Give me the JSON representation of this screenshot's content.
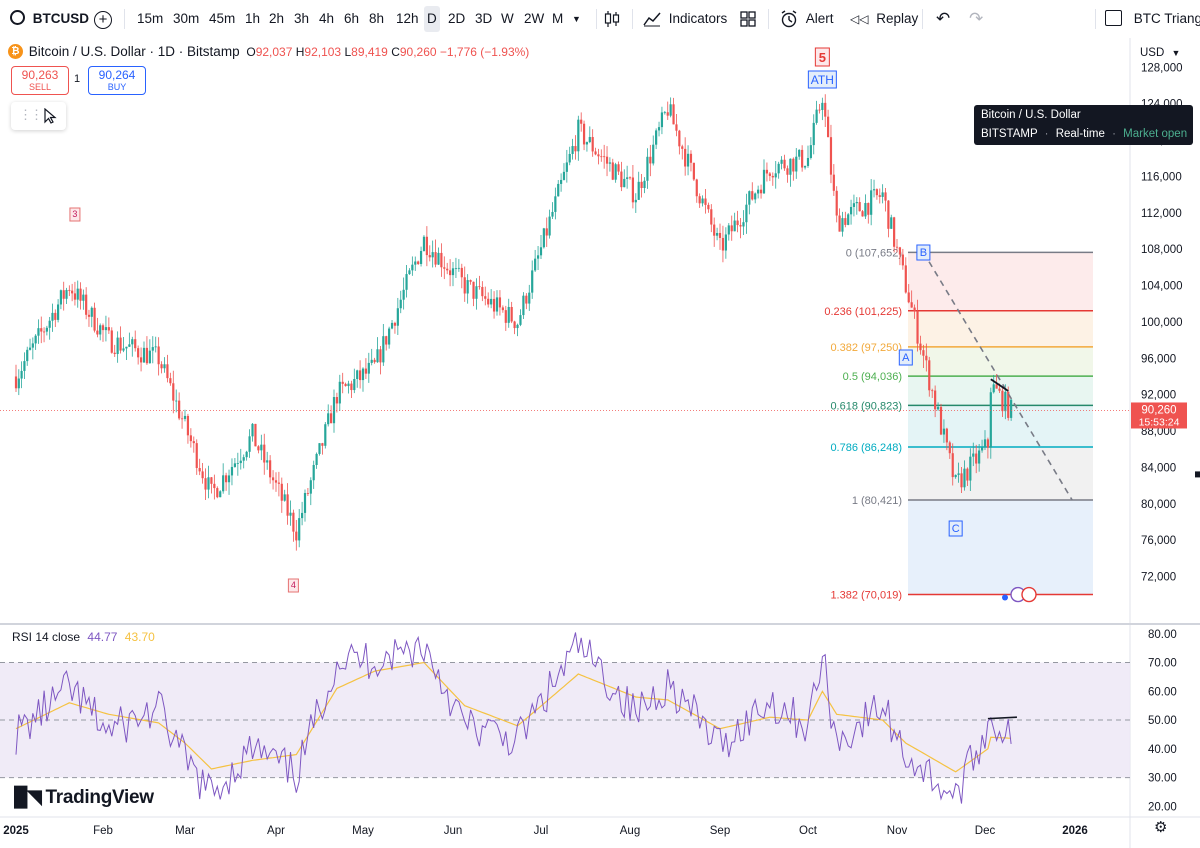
{
  "toolbar": {
    "symbol": "BTCUSD",
    "intervals": [
      "15m",
      "30m",
      "45m",
      "1h",
      "2h",
      "3h",
      "4h",
      "6h",
      "8h",
      "12h",
      "D",
      "2D",
      "3D",
      "W",
      "2W",
      "M"
    ],
    "active_interval": "D",
    "indicators_label": "Indicators",
    "alert_label": "Alert",
    "replay_label": "Replay",
    "layout_name": "BTC Triangl"
  },
  "legend": {
    "title": "Bitcoin / U.S. Dollar · 1D · Bitstamp",
    "open_label": "O",
    "open": "92,037",
    "high_label": "H",
    "high": "92,103",
    "low_label": "L",
    "low": "89,419",
    "close_label": "C",
    "close": "90,260",
    "change": "−1,776 (−1.93%)",
    "sell_price": "90,263",
    "sell_label": "SELL",
    "spread": "1",
    "buy_price": "90,264",
    "buy_label": "BUY"
  },
  "tooltip": {
    "line1": "Bitcoin / U.S. Dollar",
    "exchange": "BITSTAMP",
    "feed": "Real-time",
    "status": "Market open"
  },
  "currency": "USD",
  "current_price_label": "90,260",
  "countdown": "15:53:24",
  "rsi": {
    "label": "RSI 14 close",
    "value": "44.77",
    "ma_value": "43.70",
    "levels": [
      70,
      50,
      30
    ]
  },
  "watermark": "TradingView",
  "colors": {
    "up": "#26a69a",
    "down": "#ef5350",
    "rsi_line": "#7e57c2",
    "rsi_ma": "#f5c242",
    "rsi_band": "#ede7f6",
    "tooltip_bg": "#131722",
    "market_open": "#4caf8f"
  },
  "chart_data": [
    {
      "type": "candlestick",
      "title": "Bitcoin / U.S. Dollar · 1D · Bitstamp",
      "ylim": [
        67000,
        131000
      ],
      "y_ticks": [
        128000,
        124000,
        120000,
        116000,
        112000,
        108000,
        104000,
        100000,
        96000,
        92000,
        88000,
        84000,
        80000,
        76000,
        72000
      ],
      "y_tick_labels": [
        "128,000",
        "124,000",
        "120,000",
        "116,000",
        "112,000",
        "108,000",
        "104,000",
        "100,000",
        "96,000",
        "92,000",
        "88,000",
        "84,000",
        "80,000",
        "76,000",
        "72,000"
      ],
      "x_tick_labels": [
        "2025",
        "Feb",
        "Mar",
        "Apr",
        "May",
        "Jun",
        "Jul",
        "Aug",
        "Sep",
        "Oct",
        "Nov",
        "Dec",
        "2026"
      ],
      "series": [
        {
          "name": "BTCUSD",
          "anchor_dates": [
            "2025-01-01",
            "2025-01-20",
            "2025-02-03",
            "2025-02-20",
            "2025-03-10",
            "2025-03-24",
            "2025-04-08",
            "2025-04-22",
            "2025-05-05",
            "2025-05-22",
            "2025-06-05",
            "2025-06-23",
            "2025-07-14",
            "2025-08-03",
            "2025-08-14",
            "2025-09-01",
            "2025-09-18",
            "2025-10-01",
            "2025-10-06",
            "2025-10-11",
            "2025-10-27",
            "2025-11-04",
            "2025-11-21",
            "2025-12-02",
            "2025-12-03",
            "2025-12-10"
          ],
          "anchor_closes": [
            94000,
            104000,
            98000,
            96000,
            81000,
            87500,
            77000,
            92000,
            95000,
            109000,
            104000,
            100000,
            121000,
            114000,
            123500,
            108000,
            117000,
            118000,
            125000,
            111000,
            114000,
            104000,
            82000,
            86500,
            93000,
            90260
          ]
        }
      ],
      "annotations": [
        {
          "label": "5",
          "date": "2025-10-06"
        },
        {
          "label": "ATH",
          "date": "2025-10-06"
        },
        {
          "label": "3",
          "date": "2025-01-22"
        },
        {
          "label": "4",
          "date": "2025-04-07"
        },
        {
          "label": "B",
          "date": "2025-11-10"
        },
        {
          "label": "A",
          "date": "2025-11-04"
        },
        {
          "label": "C",
          "date": "2025-11-21"
        }
      ],
      "fibonacci": {
        "levels": [
          {
            "ratio": "0",
            "price": 107652,
            "label": "0 (107,652)",
            "color": "#787b86"
          },
          {
            "ratio": "0.236",
            "price": 101225,
            "label": "0.236 (101,225)",
            "color": "#e53935"
          },
          {
            "ratio": "0.382",
            "price": 97250,
            "label": "0.382 (97,250)",
            "color": "#f2a93b"
          },
          {
            "ratio": "0.5",
            "price": 94036,
            "label": "0.5 (94,036)",
            "color": "#4caf50"
          },
          {
            "ratio": "0.618",
            "price": 90823,
            "label": "0.618 (90,823)",
            "color": "#26896b"
          },
          {
            "ratio": "0.786",
            "price": 86248,
            "label": "0.786 (86,248)",
            "color": "#00acc1"
          },
          {
            "ratio": "1",
            "price": 80421,
            "label": "1 (80,421)",
            "color": "#787b86"
          },
          {
            "ratio": "1.382",
            "price": 70019,
            "label": "1.382 (70,019)",
            "color": "#e53935"
          }
        ]
      },
      "trendline": {
        "from": {
          "date": "2025-11-10",
          "price": 107652
        },
        "to": {
          "date": "2025-12-31",
          "price": 80421
        }
      }
    },
    {
      "type": "line",
      "title": "RSI 14 close",
      "ylim": [
        17,
        82
      ],
      "y_ticks": [
        80,
        70,
        60,
        50,
        40,
        30,
        20
      ],
      "y_tick_labels": [
        "80.00",
        "70.00",
        "60.00",
        "50.00",
        "40.00",
        "30.00",
        "20.00"
      ],
      "series": [
        {
          "name": "RSI",
          "dates": [
            "2025-01-01",
            "2025-01-20",
            "2025-02-03",
            "2025-02-20",
            "2025-03-01",
            "2025-03-10",
            "2025-03-24",
            "2025-04-08",
            "2025-04-22",
            "2025-05-05",
            "2025-05-22",
            "2025-06-05",
            "2025-06-23",
            "2025-07-14",
            "2025-08-03",
            "2025-08-14",
            "2025-09-01",
            "2025-09-18",
            "2025-10-01",
            "2025-10-06",
            "2025-10-11",
            "2025-10-27",
            "2025-11-04",
            "2025-11-21",
            "2025-12-02",
            "2025-12-03",
            "2025-12-10"
          ],
          "values": [
            45,
            61,
            46,
            54,
            36,
            24,
            40,
            31,
            71,
            71,
            76,
            48,
            43,
            76,
            52,
            63,
            41,
            57,
            48,
            72,
            42,
            55,
            38,
            23,
            48,
            50,
            44.77
          ]
        },
        {
          "name": "RSI MA",
          "dates": [
            "2025-01-01",
            "2025-01-20",
            "2025-02-03",
            "2025-02-20",
            "2025-03-01",
            "2025-03-10",
            "2025-03-24",
            "2025-04-08",
            "2025-04-22",
            "2025-05-05",
            "2025-05-22",
            "2025-06-05",
            "2025-06-23",
            "2025-07-14",
            "2025-08-03",
            "2025-08-14",
            "2025-09-01",
            "2025-09-18",
            "2025-10-01",
            "2025-10-06",
            "2025-10-11",
            "2025-10-27",
            "2025-11-04",
            "2025-11-21",
            "2025-12-02",
            "2025-12-03",
            "2025-12-10"
          ],
          "values": [
            47,
            56,
            52,
            49,
            42,
            33,
            36,
            38,
            61,
            67,
            70,
            55,
            48,
            66,
            58,
            57,
            47,
            51,
            50,
            60,
            52,
            50,
            42,
            32,
            40,
            44,
            43.7
          ]
        }
      ],
      "divergence_line": {
        "from": {
          "date": "2025-12-02",
          "value": 50.5
        },
        "to": {
          "date": "2025-12-12",
          "value": 51
        }
      }
    }
  ]
}
